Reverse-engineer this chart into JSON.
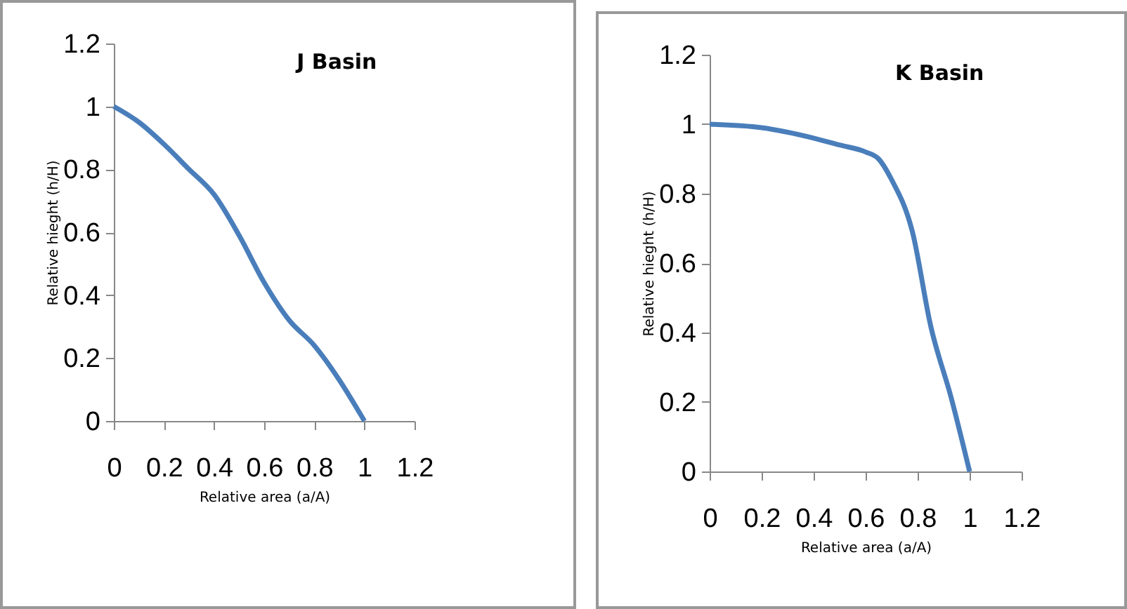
{
  "chart_data": [
    {
      "type": "line",
      "title": "J Basin",
      "xlabel": "Relative area (a/A)",
      "ylabel": "Relative hieght (h/H)",
      "x": [
        0,
        0.1,
        0.2,
        0.3,
        0.4,
        0.5,
        0.6,
        0.7,
        0.8,
        0.9,
        1
      ],
      "series": [
        {
          "color": "#4a7ebb",
          "values": [
            1,
            0.95,
            0.88,
            0.8,
            0.72,
            0.59,
            0.44,
            0.32,
            0.24,
            0.13,
            0
          ]
        }
      ],
      "xlim": [
        0,
        1.2
      ],
      "xticks": [
        0,
        0.2,
        0.4,
        0.6,
        0.8,
        1,
        1.2
      ],
      "ylim": [
        0,
        1.2
      ],
      "yticks": [
        0,
        0.2,
        0.4,
        0.6,
        0.8,
        1,
        1.2
      ],
      "grid": false
    },
    {
      "type": "line",
      "title": "K Basin",
      "xlabel": "Relative area (a/A)",
      "ylabel": "Relative hieght (h/H)",
      "x": [
        0,
        0.2,
        0.4,
        0.5,
        0.6,
        0.65,
        0.7,
        0.78,
        0.85,
        0.93,
        1
      ],
      "series": [
        {
          "color": "#4a7ebb",
          "values": [
            1,
            0.99,
            0.96,
            0.94,
            0.92,
            0.9,
            0.84,
            0.69,
            0.42,
            0.21,
            0
          ]
        }
      ],
      "xlim": [
        0,
        1.2
      ],
      "xticks": [
        0,
        0.2,
        0.4,
        0.6,
        0.8,
        1,
        1.2
      ],
      "ylim": [
        0,
        1.2
      ],
      "yticks": [
        0,
        0.2,
        0.4,
        0.6,
        0.8,
        1,
        1.2
      ],
      "grid": false
    }
  ]
}
